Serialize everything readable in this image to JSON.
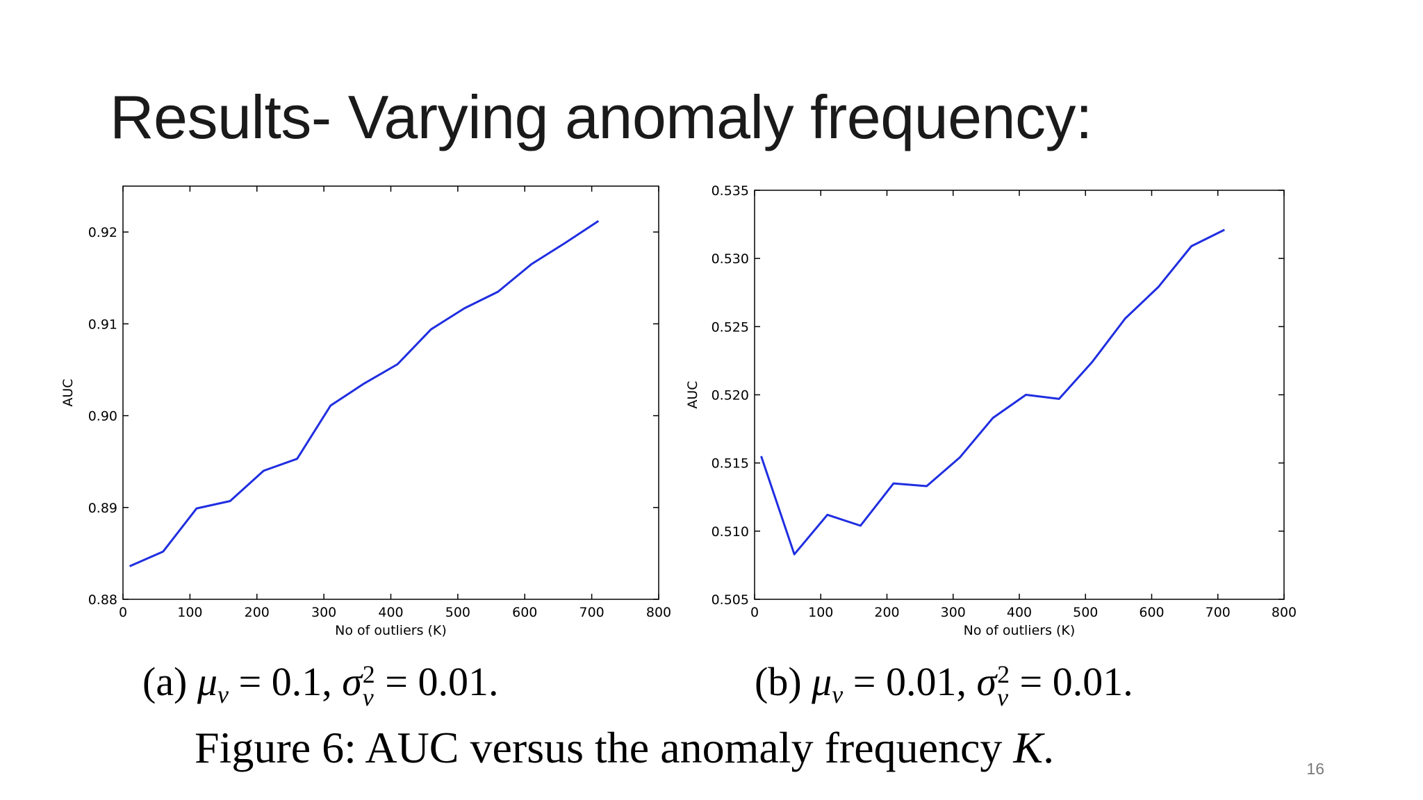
{
  "slide": {
    "title": "Results- Varying anomaly frequency:",
    "page_number": "16"
  },
  "captions": {
    "a": {
      "prefix": "(a) ",
      "mu_value": "0.1",
      "sigma_value": "0.01."
    },
    "b": {
      "prefix": "(b) ",
      "mu_value": "0.01",
      "sigma_value": "0.01."
    },
    "figure": {
      "text": "Figure 6: AUC versus the anomaly frequency ",
      "var": "K",
      "end": "."
    }
  },
  "colors": {
    "line": "#1f2ee0",
    "axis": "#000000"
  },
  "chart_data": [
    {
      "type": "line",
      "xlabel": "No of outliers (K)",
      "ylabel": "AUC",
      "xlim": [
        0,
        800
      ],
      "ylim": [
        0.88,
        0.925
      ],
      "xticks": [
        0,
        100,
        200,
        300,
        400,
        500,
        600,
        700,
        800
      ],
      "yticks": [
        0.88,
        0.89,
        0.9,
        0.91,
        0.92
      ],
      "ytick_labels": [
        "0.88",
        "0.89",
        "0.90",
        "0.91",
        "0.92"
      ],
      "grid": false,
      "series": [
        {
          "x": [
            10,
            60,
            110,
            160,
            210,
            260,
            310,
            360,
            410,
            460,
            510,
            560,
            610,
            660,
            710
          ],
          "y": [
            0.8836,
            0.8852,
            0.8899,
            0.8907,
            0.894,
            0.8953,
            0.9011,
            0.9035,
            0.9056,
            0.9094,
            0.9117,
            0.9135,
            0.9165,
            0.9188,
            0.9212
          ]
        }
      ]
    },
    {
      "type": "line",
      "xlabel": "No of outliers (K)",
      "ylabel": "AUC",
      "xlim": [
        0,
        800
      ],
      "ylim": [
        0.505,
        0.535
      ],
      "xticks": [
        0,
        100,
        200,
        300,
        400,
        500,
        600,
        700,
        800
      ],
      "yticks": [
        0.505,
        0.51,
        0.515,
        0.52,
        0.525,
        0.53,
        0.535
      ],
      "ytick_labels": [
        "0.505",
        "0.510",
        "0.515",
        "0.520",
        "0.525",
        "0.530",
        "0.535"
      ],
      "grid": false,
      "series": [
        {
          "x": [
            10,
            60,
            110,
            160,
            210,
            260,
            310,
            360,
            410,
            460,
            510,
            560,
            610,
            660,
            710
          ],
          "y": [
            0.5155,
            0.5083,
            0.5112,
            0.5104,
            0.5135,
            0.5133,
            0.5154,
            0.5183,
            0.52,
            0.5197,
            0.5224,
            0.5256,
            0.5279,
            0.5309,
            0.5321
          ]
        }
      ]
    }
  ]
}
